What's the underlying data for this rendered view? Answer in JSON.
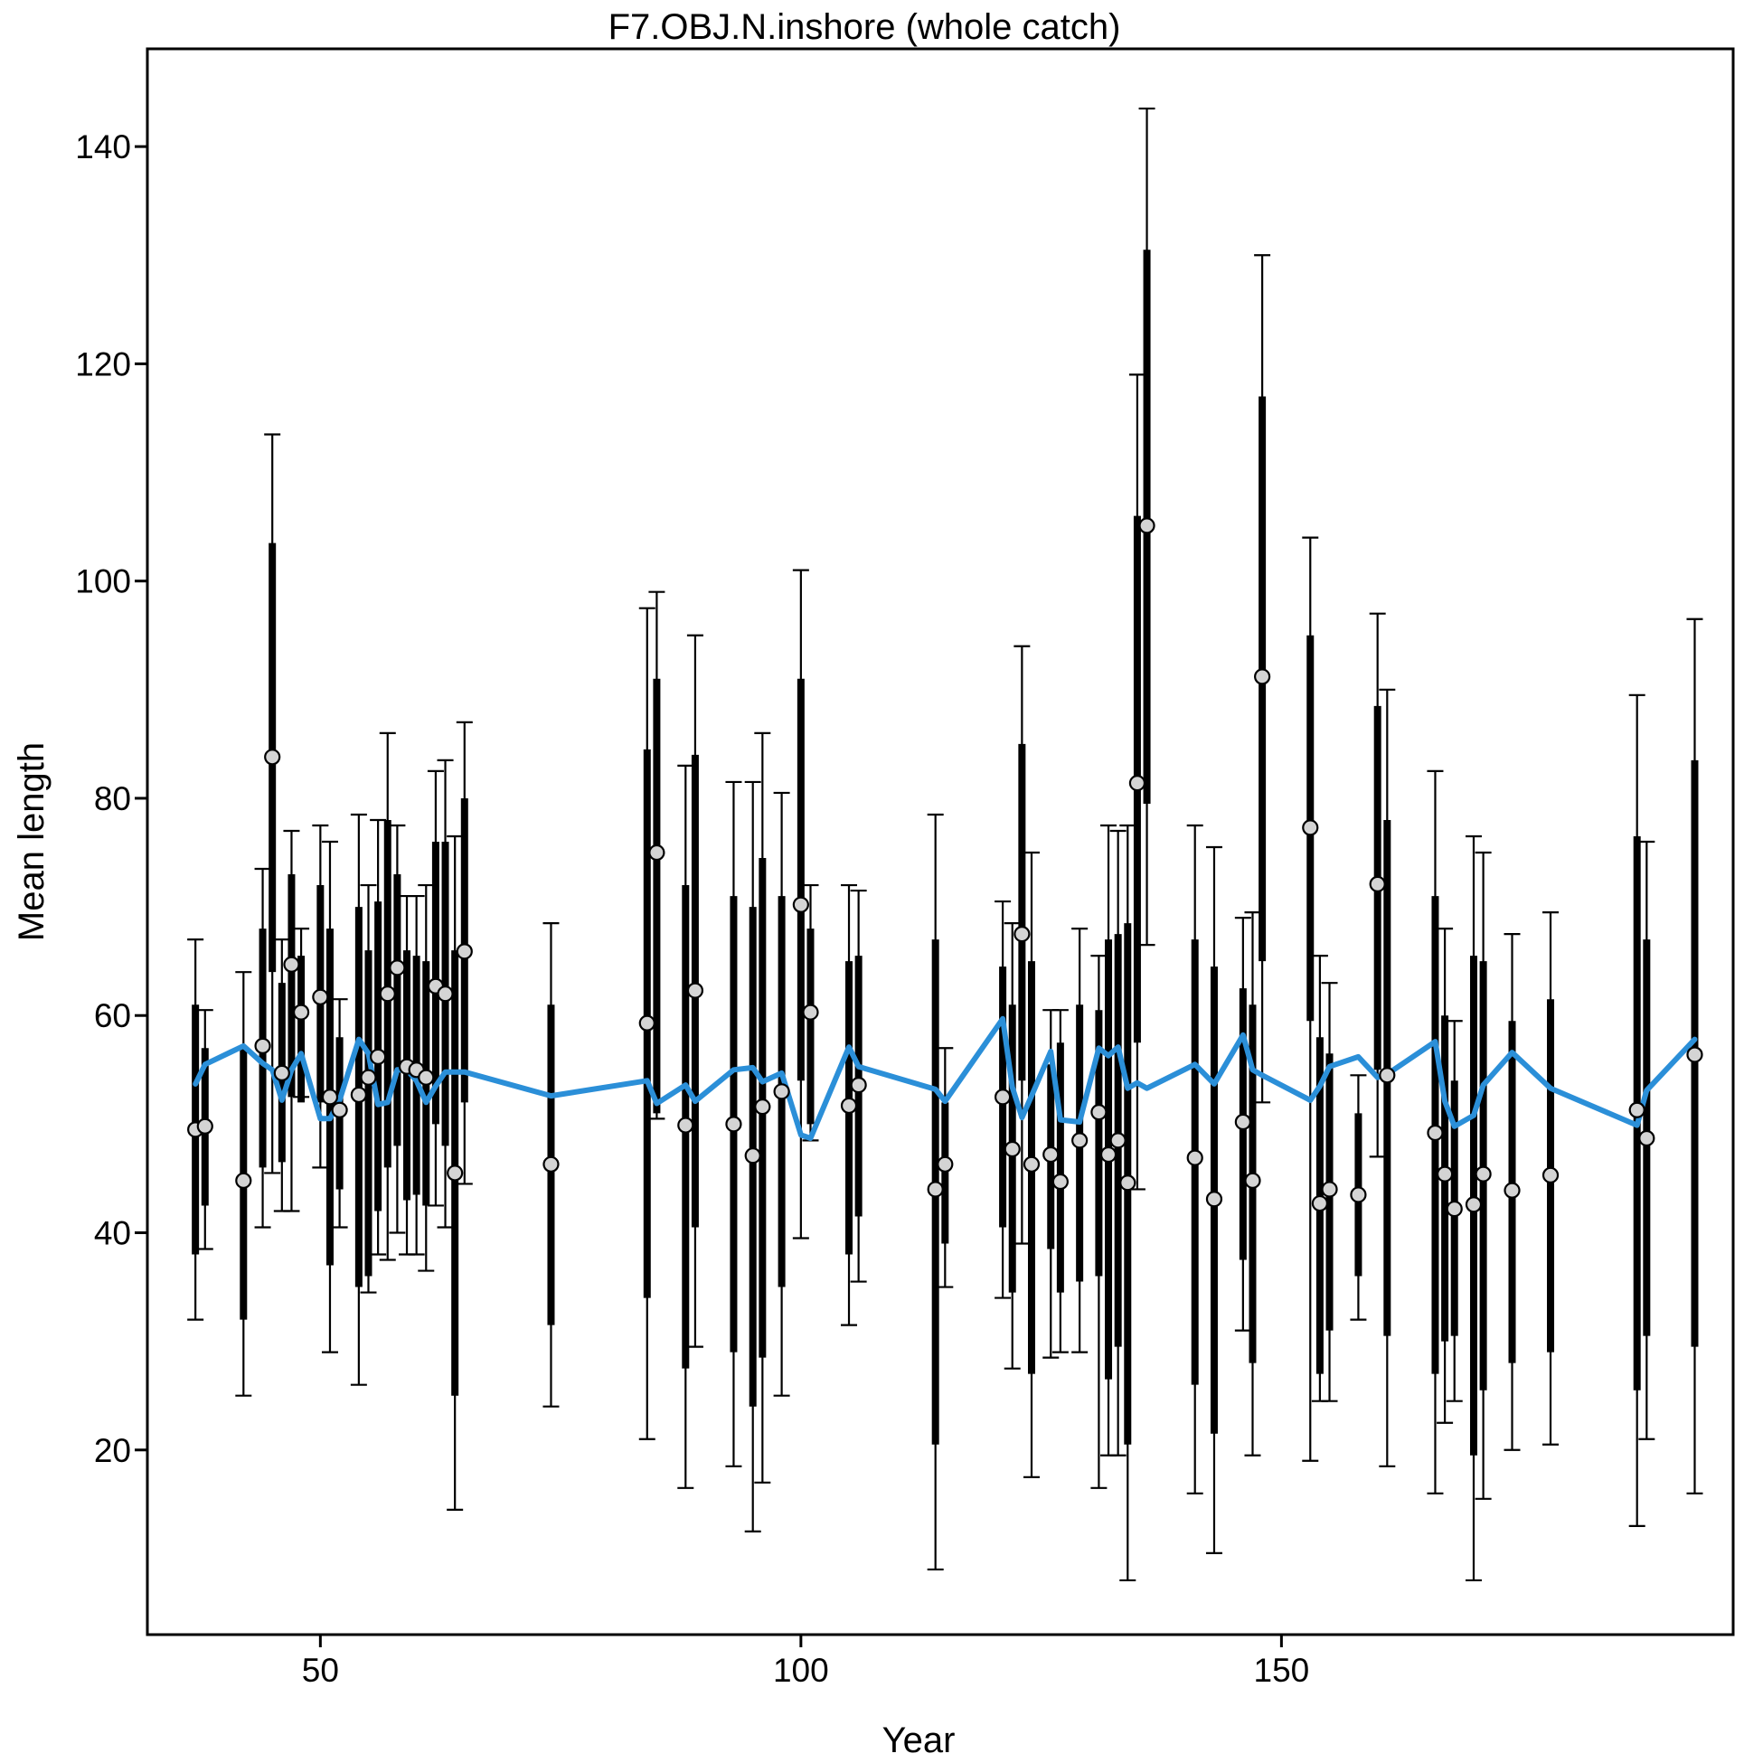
{
  "chart_data": {
    "type": "line",
    "title": "F7.OBJ.N.inshore (whole catch)",
    "xlabel": "Year",
    "ylabel": "Mean length",
    "xlim": [
      32,
      197
    ],
    "ylim": [
      3,
      149
    ],
    "x_ticks": [
      50,
      100,
      150
    ],
    "y_ticks": [
      20,
      40,
      60,
      80,
      100,
      120,
      140
    ],
    "grid": false,
    "colors": {
      "expected": "#2b8fd8",
      "observed_fill": "#d4d4d4",
      "bars": "#000000"
    },
    "series": [
      {
        "kind": "observed",
        "x": [
          37,
          38,
          42,
          44,
          45,
          46,
          47,
          48,
          50,
          51,
          52,
          54,
          55,
          56,
          57,
          58,
          59,
          60,
          61,
          62,
          63,
          64,
          65,
          74,
          84,
          85,
          88,
          89,
          93,
          95,
          96,
          98,
          100,
          101,
          105,
          106,
          114,
          115,
          121,
          122,
          123,
          124,
          126,
          127,
          129,
          131,
          132,
          133,
          134,
          135,
          136,
          141,
          143,
          146,
          147,
          148,
          153,
          154,
          155,
          158,
          160,
          161,
          166,
          167,
          168,
          170,
          171,
          174,
          178,
          187,
          188,
          193
        ],
        "y": [
          49.5,
          49.8,
          44.8,
          57.2,
          83.8,
          54.7,
          64.7,
          60.3,
          61.7,
          52.5,
          51.3,
          52.7,
          54.3,
          56.2,
          62.0,
          64.4,
          55.3,
          55.0,
          54.3,
          62.7,
          62.0,
          45.5,
          65.9,
          46.3,
          59.3,
          75.0,
          49.9,
          62.3,
          50.0,
          47.1,
          51.6,
          53.0,
          70.2,
          60.3,
          51.7,
          53.6,
          44.0,
          46.3,
          52.5,
          47.7,
          67.5,
          46.3,
          47.2,
          44.7,
          48.5,
          51.1,
          47.2,
          48.5,
          44.6,
          81.4,
          105.1,
          46.9,
          43.1,
          50.2,
          44.8,
          91.2,
          77.3,
          42.7,
          44.0,
          43.5,
          72.1,
          54.5,
          49.2,
          45.4,
          42.2,
          42.6,
          45.4,
          43.9,
          45.3,
          51.3,
          48.7,
          56.4
        ],
        "inner_low": [
          38,
          42.5,
          32,
          46,
          64,
          46.5,
          52.5,
          52,
          52,
          37,
          44,
          35,
          36,
          42,
          46,
          48,
          43,
          43.5,
          42.5,
          50,
          48,
          25,
          52,
          31.5,
          34,
          51,
          27.5,
          40.5,
          29,
          24,
          28.5,
          35,
          54,
          50,
          38,
          41.5,
          20.5,
          39,
          40.5,
          34.5,
          54,
          27,
          38.5,
          34.5,
          35.5,
          36,
          26.5,
          29.5,
          20.5,
          57.5,
          79.5,
          26,
          21.5,
          37.5,
          28,
          65,
          59.5,
          27,
          31,
          36,
          55,
          30.5,
          27,
          30,
          30.5,
          19.5,
          25.5,
          28,
          29,
          25.5,
          30.5,
          29.5
        ],
        "inner_high": [
          61,
          57,
          57,
          68,
          103.5,
          63,
          73,
          65.5,
          72,
          68,
          58,
          70,
          66,
          70.5,
          78,
          73,
          66,
          65.5,
          65,
          76,
          76,
          66,
          80,
          61,
          84.5,
          91,
          72,
          84,
          71,
          70,
          74.5,
          71,
          91,
          68,
          65,
          65.5,
          67,
          52,
          64.5,
          61,
          85,
          65,
          55.5,
          57.5,
          61,
          60.5,
          67,
          67.5,
          68.5,
          106,
          130.5,
          67,
          64.5,
          62.5,
          61,
          117,
          95,
          58,
          56.5,
          51,
          88.5,
          78,
          71,
          60,
          54,
          65.5,
          65,
          59.5,
          61.5,
          76.5,
          67,
          83.5
        ],
        "outer_low": [
          32,
          38.5,
          25,
          40.5,
          45.5,
          42,
          42,
          52.5,
          46,
          29,
          40.5,
          26,
          34.5,
          38,
          37.5,
          40,
          38,
          38,
          36.5,
          42.5,
          40.5,
          14.5,
          44.5,
          24,
          21,
          50.5,
          16.5,
          29.5,
          18.5,
          12.5,
          17,
          25,
          39.5,
          48.5,
          31.5,
          35.5,
          9,
          35,
          34,
          27.5,
          39,
          17.5,
          28.5,
          29,
          29,
          16.5,
          19.5,
          19.5,
          8,
          44,
          66.5,
          16,
          10.5,
          31,
          19.5,
          52,
          19,
          24.5,
          24.5,
          32,
          47,
          18.5,
          16,
          22.5,
          24.5,
          8,
          15.5,
          20,
          20.5,
          13,
          21,
          16
        ],
        "outer_high": [
          67,
          60.5,
          64,
          73.5,
          113.5,
          67,
          77,
          68,
          77.5,
          76,
          61.5,
          78.5,
          72,
          78,
          86,
          77.5,
          71,
          71,
          72,
          82.5,
          83.5,
          76.5,
          87,
          68.5,
          97.5,
          99,
          83,
          95,
          81.5,
          81.5,
          86,
          80.5,
          101,
          72,
          72,
          71.5,
          78.5,
          57,
          70.5,
          68.5,
          94,
          75,
          60.5,
          60.5,
          68,
          65.5,
          77.5,
          77,
          77.5,
          119,
          143.5,
          77.5,
          75.5,
          69,
          69.5,
          130,
          104,
          65.5,
          63,
          54.5,
          97,
          90,
          82.5,
          68,
          59.5,
          76.5,
          75,
          67.5,
          69.5,
          89.5,
          76,
          96.5
        ]
      },
      {
        "kind": "expected",
        "x": [
          37,
          38,
          42,
          44,
          45,
          46,
          47,
          48,
          50,
          51,
          52,
          54,
          55,
          56,
          57,
          58,
          59,
          60,
          61,
          62,
          63,
          64,
          65,
          74,
          84,
          85,
          88,
          89,
          93,
          95,
          96,
          98,
          100,
          101,
          105,
          106,
          114,
          115,
          121,
          122,
          123,
          124,
          126,
          127,
          129,
          131,
          132,
          133,
          134,
          135,
          136,
          141,
          143,
          146,
          147,
          148,
          153,
          154,
          155,
          158,
          160,
          161,
          166,
          167,
          168,
          170,
          171,
          174,
          178,
          187,
          188,
          193
        ],
        "y": [
          53.7,
          55.5,
          57.2,
          55.6,
          55.0,
          52.2,
          55.0,
          56.5,
          50.5,
          50.5,
          52.2,
          57.8,
          56.5,
          51.8,
          52.0,
          55.0,
          55.0,
          54.0,
          52.0,
          53.5,
          54.8,
          54.8,
          54.8,
          52.6,
          54.0,
          51.9,
          53.6,
          52.1,
          55.0,
          55.2,
          53.9,
          54.7,
          49.0,
          48.7,
          57.1,
          55.3,
          53.2,
          52.1,
          59.7,
          53.4,
          50.6,
          52.6,
          56.7,
          50.4,
          50.2,
          57.0,
          56.3,
          57.1,
          53.3,
          53.8,
          53.3,
          55.5,
          53.7,
          58.2,
          55.0,
          54.5,
          52.2,
          53.5,
          55.3,
          56.2,
          54.3,
          54.6,
          57.6,
          52.1,
          49.8,
          50.8,
          53.6,
          56.6,
          53.3,
          49.9,
          53.1,
          57.8
        ]
      }
    ]
  }
}
